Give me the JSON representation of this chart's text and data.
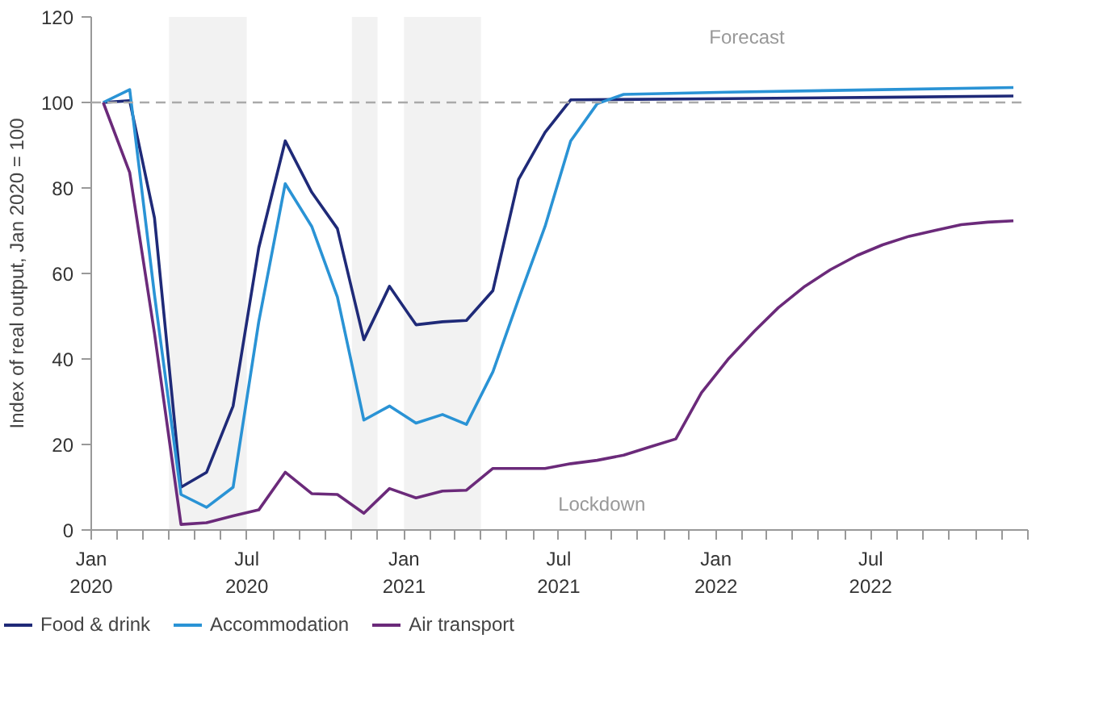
{
  "chart_data": {
    "type": "line",
    "ylabel": "Index of real output, Jan 2020 = 100",
    "xlim": [
      "2020-01-01",
      "2023-01-01"
    ],
    "xticks": [
      {
        "value": "2020-01-01",
        "label": "Jan\n2020"
      },
      {
        "value": "2020-02-01",
        "label": null
      },
      {
        "value": "2020-03-01",
        "label": null
      },
      {
        "value": "2020-04-01",
        "label": null
      },
      {
        "value": "2020-05-01",
        "label": null
      },
      {
        "value": "2020-06-01",
        "label": null
      },
      {
        "value": "2020-07-01",
        "label": "Jul\n2020"
      },
      {
        "value": "2020-08-01",
        "label": null
      },
      {
        "value": "2020-09-01",
        "label": null
      },
      {
        "value": "2020-10-01",
        "label": null
      },
      {
        "value": "2020-11-01",
        "label": null
      },
      {
        "value": "2020-12-01",
        "label": null
      },
      {
        "value": "2021-01-01",
        "label": "Jan\n2021"
      },
      {
        "value": "2021-02-01",
        "label": null
      },
      {
        "value": "2021-03-01",
        "label": null
      },
      {
        "value": "2021-04-01",
        "label": null
      },
      {
        "value": "2021-05-01",
        "label": null
      },
      {
        "value": "2021-06-01",
        "label": null
      },
      {
        "value": "2021-07-01",
        "label": "Jul\n2021"
      },
      {
        "value": "2021-08-01",
        "label": null
      },
      {
        "value": "2021-09-01",
        "label": null
      },
      {
        "value": "2021-10-01",
        "label": null
      },
      {
        "value": "2021-11-01",
        "label": null
      },
      {
        "value": "2021-12-01",
        "label": null
      },
      {
        "value": "2022-01-01",
        "label": "Jan\n2022"
      },
      {
        "value": "2022-02-01",
        "label": null
      },
      {
        "value": "2022-03-01",
        "label": null
      },
      {
        "value": "2022-04-01",
        "label": null
      },
      {
        "value": "2022-05-01",
        "label": null
      },
      {
        "value": "2022-06-01",
        "label": null
      },
      {
        "value": "2022-07-01",
        "label": "Jul\n2022"
      },
      {
        "value": "2022-08-01",
        "label": null
      },
      {
        "value": "2022-09-01",
        "label": null
      },
      {
        "value": "2022-10-01",
        "label": null
      },
      {
        "value": "2022-11-01",
        "label": null
      },
      {
        "value": "2022-12-01",
        "label": null
      },
      {
        "value": "2023-01-01",
        "label": null
      }
    ],
    "ylim": [
      0,
      120
    ],
    "yticks": [
      0,
      20,
      40,
      60,
      80,
      100,
      120
    ],
    "grid": false,
    "legend": "bottom",
    "marker": "none",
    "line_style": "solid",
    "series": [
      {
        "name": "Food & drink",
        "color": "#1f2a78",
        "x": [
          "2020-01-15",
          "2020-02-15",
          "2020-03-15",
          "2020-04-15",
          "2020-05-15",
          "2020-06-15",
          "2020-07-15",
          "2020-08-15",
          "2020-09-15",
          "2020-10-15",
          "2020-11-15",
          "2020-12-15",
          "2021-01-15",
          "2021-02-15",
          "2021-03-15",
          "2021-04-15",
          "2021-05-15",
          "2021-06-15",
          "2021-07-15",
          "2022-01-15",
          "2022-07-15",
          "2022-12-15"
        ],
        "values": [
          100,
          100.4,
          73,
          10,
          13.5,
          29,
          66,
          91,
          79,
          70.5,
          44.5,
          57,
          48,
          48.7,
          49,
          56,
          82,
          93,
          100.6,
          100.9,
          101.2,
          101.5
        ]
      },
      {
        "name": "Accommodation",
        "color": "#2a93d5",
        "x": [
          "2020-01-15",
          "2020-02-15",
          "2020-03-15",
          "2020-04-15",
          "2020-05-15",
          "2020-06-15",
          "2020-07-15",
          "2020-08-15",
          "2020-09-15",
          "2020-10-15",
          "2020-11-15",
          "2020-12-15",
          "2021-01-15",
          "2021-02-15",
          "2021-03-15",
          "2021-04-15",
          "2021-05-15",
          "2021-06-15",
          "2021-07-15",
          "2021-08-15",
          "2021-09-15",
          "2022-01-15",
          "2022-07-15",
          "2022-12-15"
        ],
        "values": [
          100,
          103,
          55,
          8.3,
          5.3,
          10,
          48.7,
          81,
          71,
          54.5,
          25.7,
          29,
          25,
          27,
          24.7,
          37,
          54,
          71,
          91,
          99.7,
          101.9,
          102.4,
          103,
          103.5
        ]
      },
      {
        "name": "Air transport",
        "color": "#6b2a7a",
        "x": [
          "2020-01-15",
          "2020-02-15",
          "2020-03-15",
          "2020-04-15",
          "2020-05-15",
          "2020-06-15",
          "2020-07-15",
          "2020-08-15",
          "2020-09-15",
          "2020-10-15",
          "2020-11-15",
          "2020-12-15",
          "2021-01-15",
          "2021-02-15",
          "2021-03-15",
          "2021-04-15",
          "2021-05-15",
          "2021-06-15",
          "2021-07-15",
          "2021-08-15",
          "2021-09-15",
          "2021-10-15",
          "2021-11-15",
          "2021-12-15",
          "2022-01-15",
          "2022-02-15",
          "2022-03-15",
          "2022-04-15",
          "2022-05-15",
          "2022-06-15",
          "2022-07-15",
          "2022-08-15",
          "2022-09-15",
          "2022-10-15",
          "2022-11-15",
          "2022-12-15"
        ],
        "values": [
          100,
          83.6,
          46,
          1.3,
          1.7,
          3.3,
          4.7,
          13.5,
          8.5,
          8.3,
          3.9,
          9.7,
          7.5,
          9.1,
          9.3,
          14.4,
          14.4,
          14.4,
          15.5,
          16.3,
          17.5,
          19.4,
          21.3,
          32.1,
          39.9,
          46.5,
          52,
          57,
          60.9,
          64.2,
          66.7,
          68.7,
          70.1,
          71.4,
          72,
          72.3
        ]
      }
    ],
    "ref_lines": [
      {
        "axis": "y",
        "value": 100,
        "color": "#aaaaaa",
        "line_style": "dashed"
      }
    ],
    "bands": [
      {
        "axis": "x",
        "from": "2020-04-01",
        "to": "2020-07-01",
        "color": "#f2f2f2"
      },
      {
        "axis": "x",
        "from": "2020-11-01",
        "to": "2020-12-01",
        "color": "#f2f2f2"
      },
      {
        "axis": "x",
        "from": "2021-01-01",
        "to": "2021-04-01",
        "color": "#f2f2f2"
      }
    ],
    "annotations": [
      "Forecast",
      "Lockdown"
    ]
  }
}
